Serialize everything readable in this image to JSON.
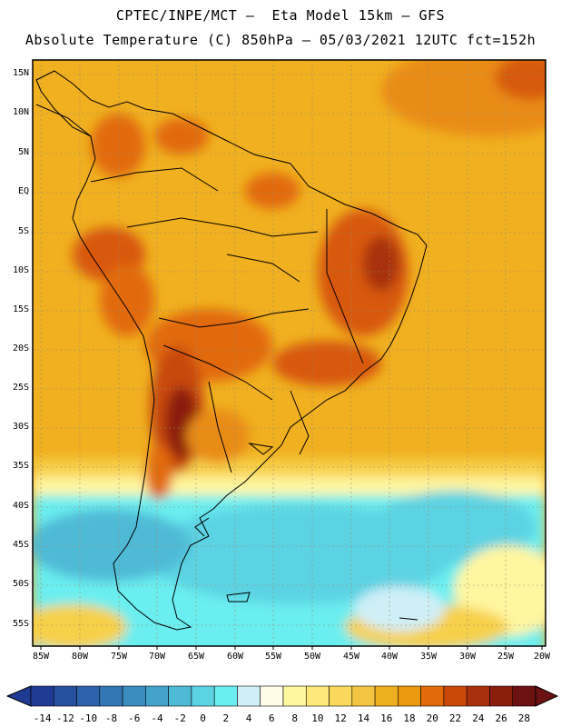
{
  "header": {
    "line1": "CPTEC/INPE/MCT –  Eta Model 15km – GFS",
    "line2": "Absolute Temperature (C) 850hPa – 05/03/2021 12UTC fct=152h"
  },
  "lat_labels": [
    "15N",
    "10N",
    "5N",
    "EQ",
    "5S",
    "10S",
    "15S",
    "20S",
    "25S",
    "30S",
    "35S",
    "40S",
    "45S",
    "50S",
    "55S"
  ],
  "lon_labels": [
    "85W",
    "80W",
    "75W",
    "70W",
    "65W",
    "60W",
    "55W",
    "50W",
    "45W",
    "40W",
    "35W",
    "30W",
    "25W",
    "20W"
  ],
  "colorbar": {
    "labels": [
      "-14",
      "-12",
      "-10",
      "-8",
      "-6",
      "-4",
      "-2",
      "0",
      "2",
      "4",
      "6",
      "8",
      "10",
      "12",
      "14",
      "16",
      "18",
      "20",
      "22",
      "24",
      "26",
      "28"
    ],
    "colors": [
      "#1f3a93",
      "#27509e",
      "#2d63aa",
      "#3378b5",
      "#3b8dc0",
      "#44a3cb",
      "#4fbad6",
      "#5bd3e3",
      "#6aeef0",
      "#cfeff7",
      "#fffbe6",
      "#fff6a0",
      "#fde87a",
      "#f9d85c",
      "#f4c542",
      "#efb020",
      "#eb9a10",
      "#e26a08",
      "#c9480a",
      "#a8300c",
      "#8a1f0e",
      "#6d1212"
    ]
  }
}
